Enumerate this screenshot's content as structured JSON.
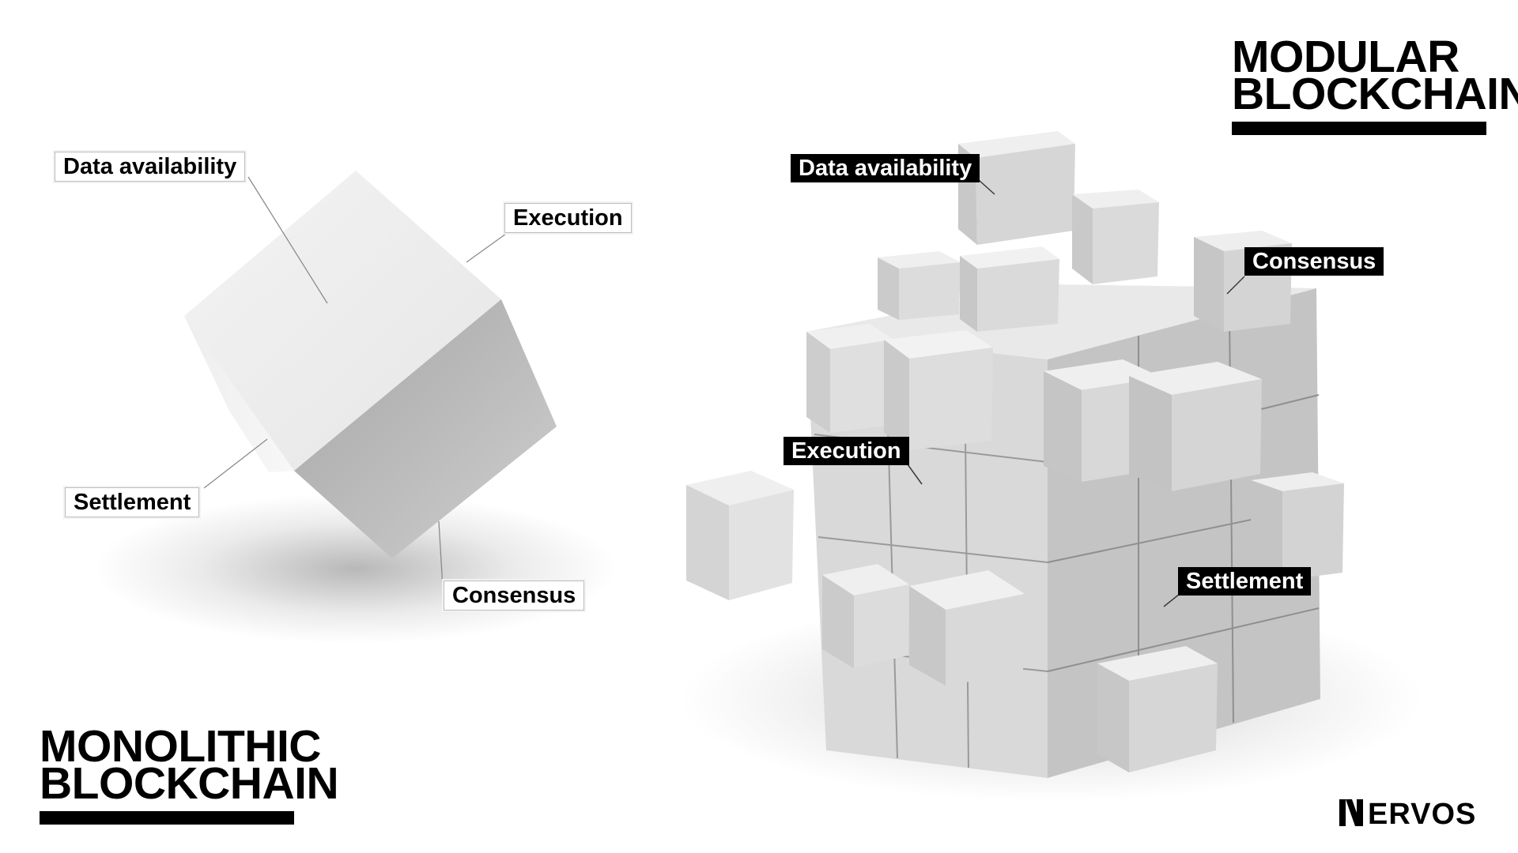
{
  "monolithic": {
    "title_lines": [
      "MONOLITHIC",
      "BLOCKCHAIN"
    ],
    "labels": {
      "data_availability": "Data availability",
      "execution": "Execution",
      "settlement": "Settlement",
      "consensus": "Consensus"
    }
  },
  "modular": {
    "title_lines": [
      "MODULAR",
      "BLOCKCHAIN"
    ],
    "labels": {
      "data_availability": "Data availability",
      "consensus": "Consensus",
      "execution": "Execution",
      "settlement": "Settlement"
    }
  },
  "brand": {
    "logo_text": "NERVOS"
  },
  "colors": {
    "ink": "#000000",
    "paper": "#ffffff",
    "cube_light": "#ececec",
    "cube_mid": "#d4d4d4",
    "cube_dark": "#a9a9a9"
  }
}
